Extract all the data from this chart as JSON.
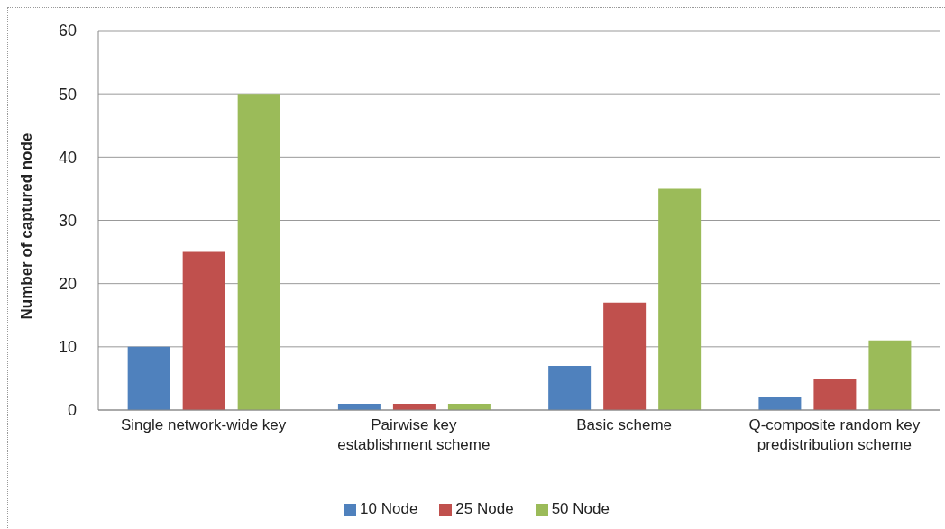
{
  "chart_data": {
    "type": "bar",
    "ylabel": "Number of captured node",
    "categories": [
      "Single network-wide key",
      "Pairwise key establishment scheme",
      "Basic scheme",
      "Q-composite random key predistribution scheme"
    ],
    "series": [
      {
        "name": "10 Node",
        "color": "#4f81bd",
        "values": [
          10,
          1,
          7,
          2
        ]
      },
      {
        "name": "25 Node",
        "color": "#c0504d",
        "values": [
          25,
          1,
          17,
          5
        ]
      },
      {
        "name": "50 Node",
        "color": "#9bbb59",
        "values": [
          50,
          1,
          35,
          11
        ]
      }
    ],
    "ylim": [
      0,
      60
    ],
    "yticks": [
      0,
      10,
      20,
      30,
      40,
      50,
      60
    ],
    "grid": "y",
    "legend": "bottom"
  }
}
